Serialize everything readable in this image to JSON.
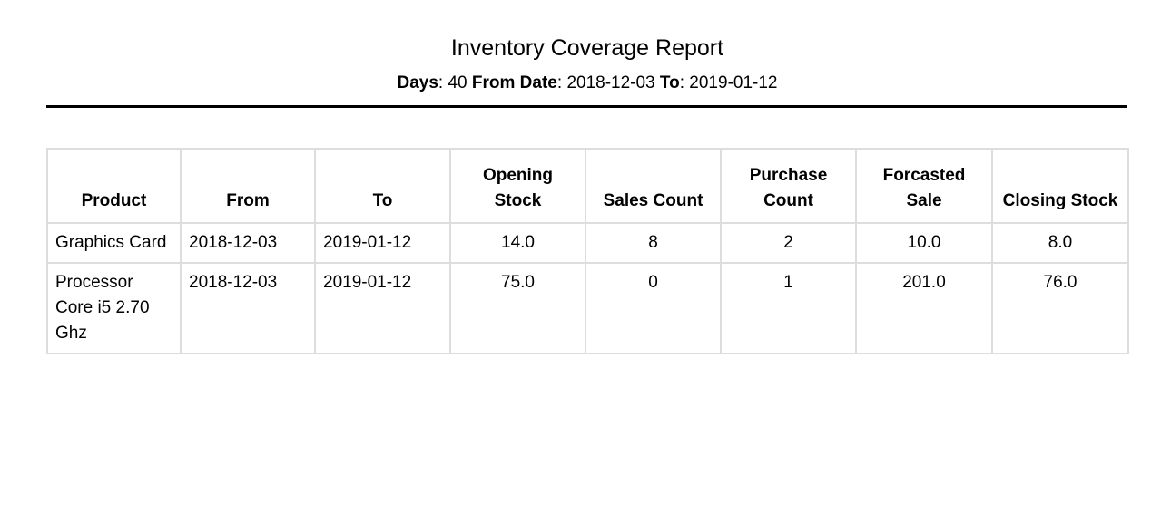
{
  "report": {
    "title": "Inventory Coverage Report",
    "days_label": "Days",
    "days_value": "40",
    "from_label": "From Date",
    "from_value": "2018-12-03",
    "to_label": "To",
    "to_value": "2019-01-12"
  },
  "table": {
    "headers": [
      "Product",
      "From",
      "To",
      "Opening Stock",
      "Sales Count",
      "Purchase Count",
      "Forcasted Sale",
      "Closing Stock"
    ],
    "rows": [
      {
        "product": "Graphics Card",
        "from": "2018-12-03",
        "to": "2019-01-12",
        "opening_stock": "14.0",
        "sales_count": "8",
        "purchase_count": "2",
        "forcasted_sale": "10.0",
        "closing_stock": "8.0"
      },
      {
        "product": "Processor Core i5 2.70 Ghz",
        "from": "2018-12-03",
        "to": "2019-01-12",
        "opening_stock": "75.0",
        "sales_count": "0",
        "purchase_count": "1",
        "forcasted_sale": "201.0",
        "closing_stock": "76.0"
      }
    ]
  }
}
